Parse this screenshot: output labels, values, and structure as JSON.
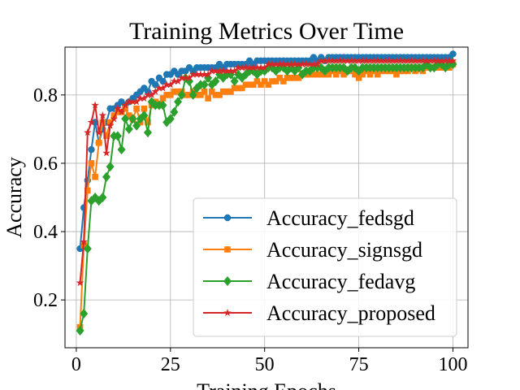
{
  "chart_data": {
    "type": "line",
    "title": "Training Metrics Over Time",
    "xlabel": "Training Epochs",
    "ylabel": "Accuracy",
    "xlim": [
      -3,
      104
    ],
    "ylim": [
      0.06,
      0.94
    ],
    "xticks": [
      0,
      25,
      50,
      75,
      100
    ],
    "yticks": [
      0.2,
      0.4,
      0.6,
      0.8
    ],
    "grid": true,
    "legend_position": "lower-right",
    "x": [
      1,
      2,
      3,
      4,
      5,
      6,
      7,
      8,
      9,
      10,
      11,
      12,
      13,
      14,
      15,
      16,
      17,
      18,
      19,
      20,
      21,
      22,
      23,
      24,
      25,
      26,
      27,
      28,
      29,
      30,
      31,
      32,
      33,
      34,
      35,
      36,
      37,
      38,
      39,
      40,
      41,
      42,
      43,
      44,
      45,
      46,
      47,
      48,
      49,
      50,
      51,
      52,
      53,
      54,
      55,
      56,
      57,
      58,
      59,
      60,
      61,
      62,
      63,
      64,
      65,
      66,
      67,
      68,
      69,
      70,
      71,
      72,
      73,
      74,
      75,
      76,
      77,
      78,
      79,
      80,
      81,
      82,
      83,
      84,
      85,
      86,
      87,
      88,
      89,
      90,
      91,
      92,
      93,
      94,
      95,
      96,
      97,
      98,
      99,
      100
    ],
    "series": [
      {
        "name": "Accuracy_fedsgd",
        "color": "#1f77b4",
        "marker": "circle",
        "values": [
          0.35,
          0.47,
          0.55,
          0.64,
          0.72,
          0.66,
          0.7,
          0.72,
          0.76,
          0.76,
          0.77,
          0.78,
          0.77,
          0.78,
          0.79,
          0.8,
          0.81,
          0.82,
          0.81,
          0.84,
          0.83,
          0.85,
          0.84,
          0.86,
          0.86,
          0.87,
          0.86,
          0.87,
          0.87,
          0.88,
          0.87,
          0.88,
          0.88,
          0.88,
          0.88,
          0.88,
          0.88,
          0.89,
          0.88,
          0.89,
          0.89,
          0.89,
          0.89,
          0.89,
          0.89,
          0.9,
          0.89,
          0.9,
          0.9,
          0.9,
          0.9,
          0.9,
          0.9,
          0.9,
          0.9,
          0.9,
          0.9,
          0.9,
          0.9,
          0.9,
          0.9,
          0.9,
          0.91,
          0.9,
          0.91,
          0.9,
          0.91,
          0.91,
          0.91,
          0.91,
          0.91,
          0.91,
          0.91,
          0.91,
          0.91,
          0.91,
          0.91,
          0.91,
          0.91,
          0.91,
          0.91,
          0.91,
          0.91,
          0.91,
          0.91,
          0.91,
          0.91,
          0.91,
          0.91,
          0.91,
          0.91,
          0.91,
          0.91,
          0.91,
          0.91,
          0.91,
          0.91,
          0.91,
          0.91,
          0.92
        ]
      },
      {
        "name": "Accuracy_signsgd",
        "color": "#ff7f0e",
        "marker": "square",
        "values": [
          0.12,
          0.36,
          0.52,
          0.6,
          0.56,
          0.66,
          0.72,
          0.68,
          0.72,
          0.74,
          0.75,
          0.75,
          0.76,
          0.74,
          0.73,
          0.76,
          0.72,
          0.76,
          0.72,
          0.77,
          0.78,
          0.77,
          0.79,
          0.8,
          0.8,
          0.81,
          0.81,
          0.81,
          0.8,
          0.8,
          0.81,
          0.8,
          0.8,
          0.81,
          0.79,
          0.81,
          0.8,
          0.8,
          0.81,
          0.81,
          0.81,
          0.82,
          0.82,
          0.82,
          0.83,
          0.83,
          0.83,
          0.84,
          0.83,
          0.84,
          0.83,
          0.84,
          0.84,
          0.85,
          0.84,
          0.85,
          0.85,
          0.85,
          0.85,
          0.86,
          0.86,
          0.86,
          0.86,
          0.86,
          0.86,
          0.86,
          0.86,
          0.87,
          0.86,
          0.87,
          0.86,
          0.87,
          0.87,
          0.86,
          0.85,
          0.86,
          0.87,
          0.86,
          0.87,
          0.86,
          0.87,
          0.87,
          0.87,
          0.87,
          0.86,
          0.87,
          0.87,
          0.87,
          0.88,
          0.87,
          0.88,
          0.87,
          0.88,
          0.88,
          0.88,
          0.88,
          0.88,
          0.88,
          0.88,
          0.89
        ]
      },
      {
        "name": "Accuracy_fedavg",
        "color": "#2ca02c",
        "marker": "diamond",
        "values": [
          0.11,
          0.16,
          0.35,
          0.49,
          0.5,
          0.49,
          0.5,
          0.56,
          0.59,
          0.68,
          0.68,
          0.64,
          0.73,
          0.7,
          0.73,
          0.71,
          0.73,
          0.74,
          0.69,
          0.78,
          0.77,
          0.77,
          0.77,
          0.72,
          0.73,
          0.75,
          0.78,
          0.8,
          0.85,
          0.84,
          0.8,
          0.82,
          0.83,
          0.83,
          0.85,
          0.83,
          0.84,
          0.86,
          0.85,
          0.86,
          0.86,
          0.84,
          0.86,
          0.85,
          0.86,
          0.87,
          0.87,
          0.86,
          0.87,
          0.87,
          0.88,
          0.88,
          0.87,
          0.88,
          0.88,
          0.87,
          0.88,
          0.87,
          0.88,
          0.86,
          0.87,
          0.87,
          0.88,
          0.88,
          0.88,
          0.87,
          0.88,
          0.88,
          0.88,
          0.88,
          0.88,
          0.87,
          0.88,
          0.88,
          0.87,
          0.88,
          0.88,
          0.88,
          0.88,
          0.88,
          0.88,
          0.88,
          0.88,
          0.88,
          0.88,
          0.88,
          0.88,
          0.88,
          0.88,
          0.88,
          0.88,
          0.88,
          0.89,
          0.88,
          0.88,
          0.89,
          0.89,
          0.88,
          0.89,
          0.89
        ]
      },
      {
        "name": "Accuracy_proposed",
        "color": "#d62728",
        "marker": "star",
        "values": [
          0.25,
          0.37,
          0.69,
          0.72,
          0.77,
          0.69,
          0.74,
          0.63,
          0.71,
          0.73,
          0.76,
          0.75,
          0.77,
          0.78,
          0.78,
          0.78,
          0.79,
          0.79,
          0.8,
          0.8,
          0.81,
          0.82,
          0.82,
          0.83,
          0.83,
          0.84,
          0.84,
          0.85,
          0.85,
          0.85,
          0.86,
          0.86,
          0.86,
          0.86,
          0.86,
          0.87,
          0.87,
          0.87,
          0.87,
          0.87,
          0.87,
          0.87,
          0.88,
          0.88,
          0.88,
          0.88,
          0.88,
          0.88,
          0.88,
          0.88,
          0.89,
          0.89,
          0.89,
          0.89,
          0.89,
          0.89,
          0.89,
          0.89,
          0.89,
          0.89,
          0.89,
          0.89,
          0.89,
          0.89,
          0.9,
          0.9,
          0.9,
          0.9,
          0.9,
          0.9,
          0.9,
          0.9,
          0.9,
          0.9,
          0.9,
          0.9,
          0.9,
          0.9,
          0.9,
          0.9,
          0.9,
          0.9,
          0.9,
          0.9,
          0.9,
          0.9,
          0.9,
          0.9,
          0.9,
          0.9,
          0.9,
          0.9,
          0.9,
          0.9,
          0.9,
          0.9,
          0.9,
          0.9,
          0.9,
          0.9
        ]
      }
    ]
  }
}
